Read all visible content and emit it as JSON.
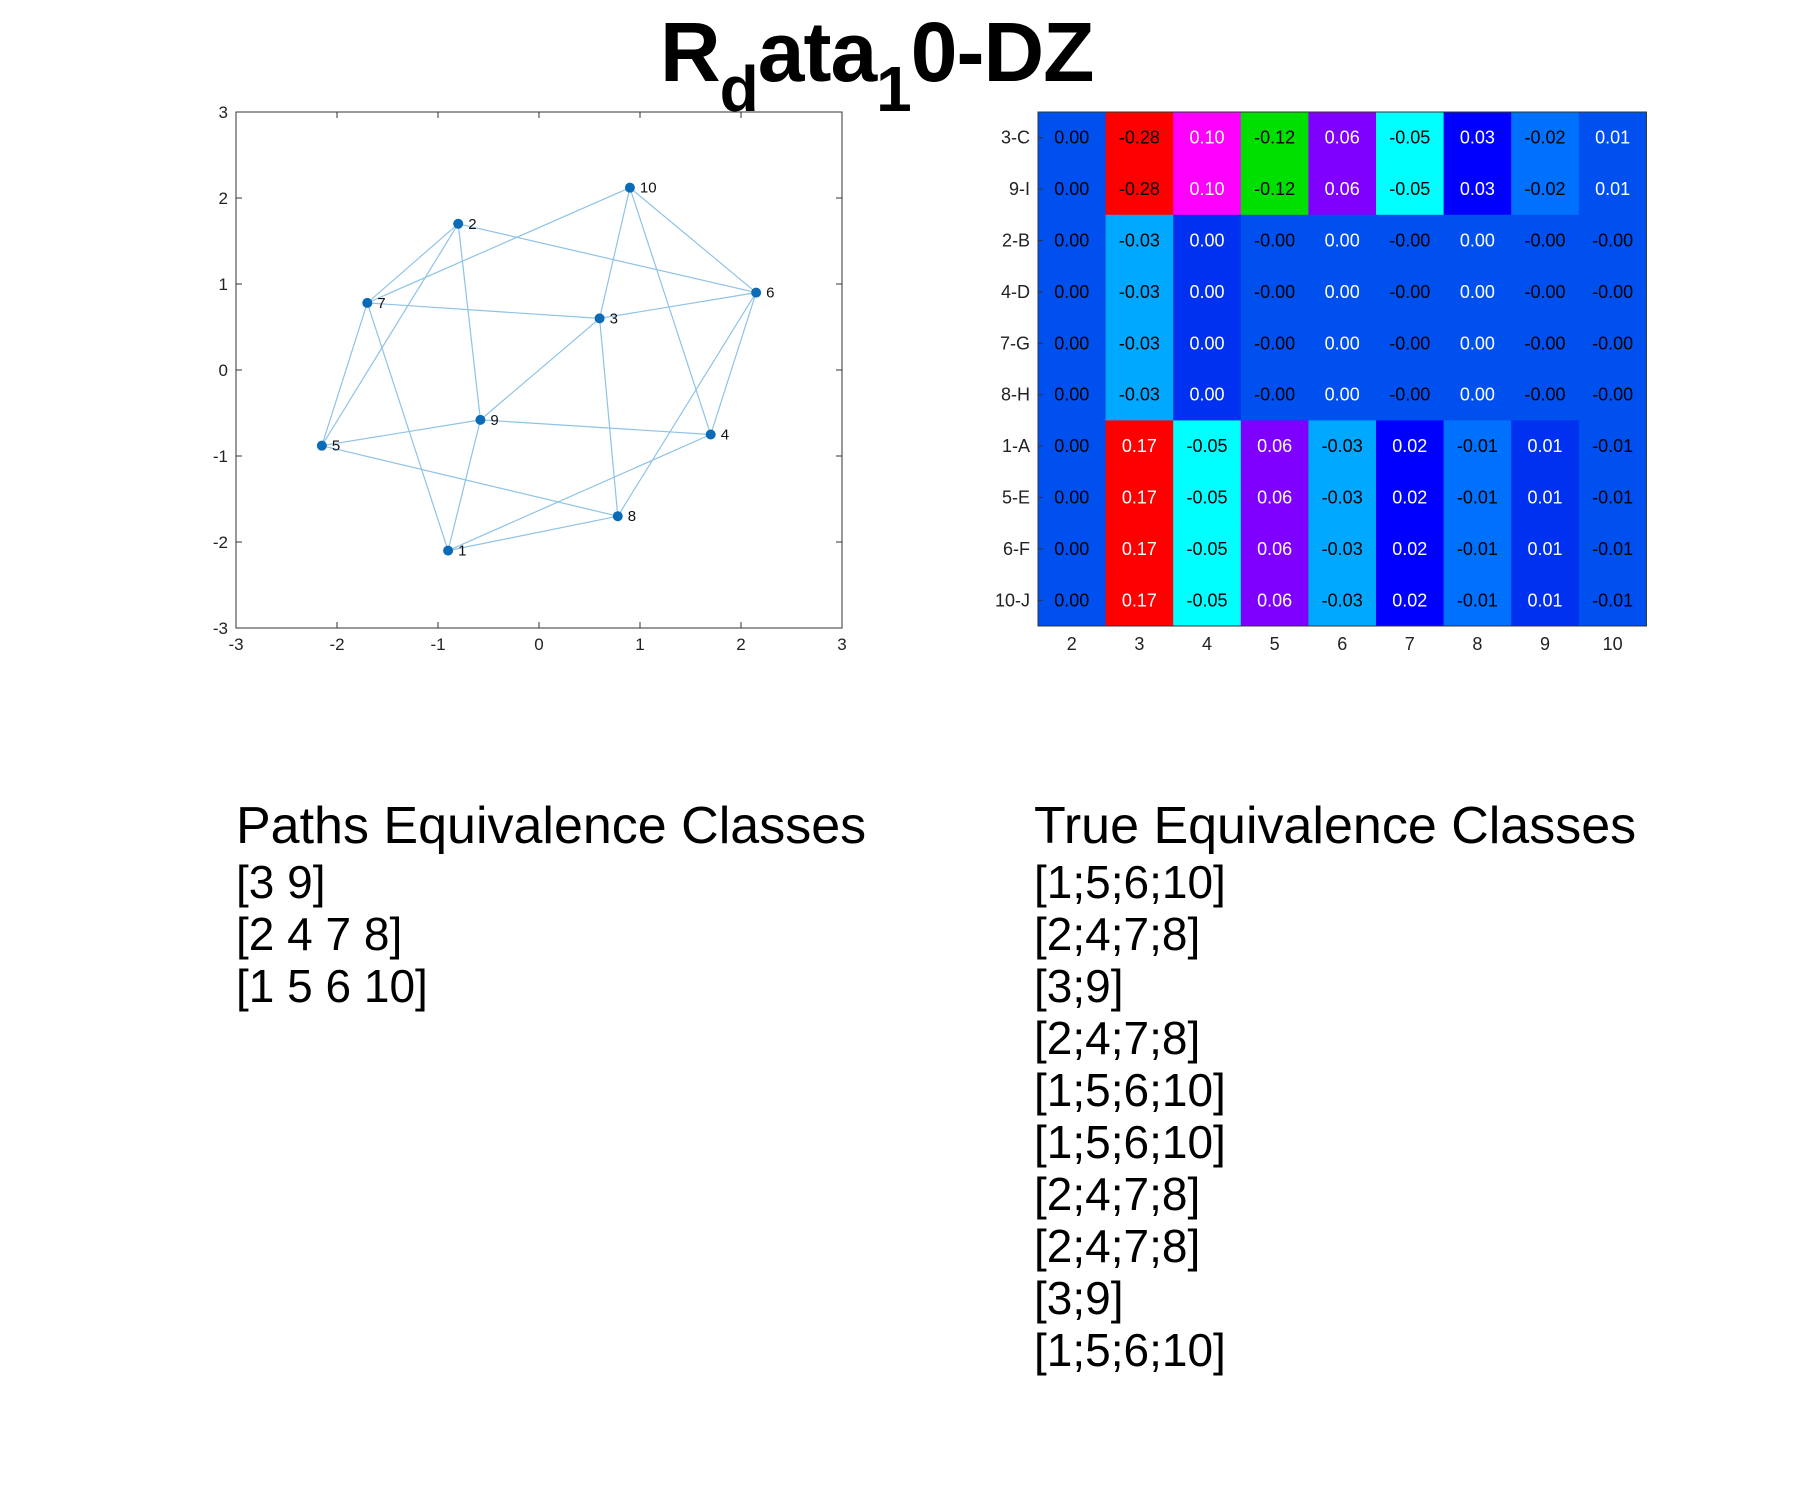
{
  "title": {
    "main": "R",
    "sub_d": "d",
    "mid": "ata",
    "sub_1": "1",
    "end": "0-DZ"
  },
  "chart_data": [
    {
      "type": "scatter",
      "xlim": [
        -3,
        3
      ],
      "ylim": [
        -3,
        3
      ],
      "xticks": [
        "-3",
        "-2",
        "-1",
        "0",
        "1",
        "2",
        "3"
      ],
      "yticks": [
        "-3",
        "-2",
        "-1",
        "0",
        "1",
        "2",
        "3"
      ],
      "grid": false,
      "point_color": "#0b6bb6",
      "edge_color": "#8fc3e6",
      "nodes": [
        {
          "label": "1",
          "x": -0.9,
          "y": -2.1
        },
        {
          "label": "2",
          "x": -0.8,
          "y": 1.7
        },
        {
          "label": "3",
          "x": 0.6,
          "y": 0.6
        },
        {
          "label": "4",
          "x": 1.7,
          "y": -0.75
        },
        {
          "label": "5",
          "x": -2.15,
          "y": -0.88
        },
        {
          "label": "6",
          "x": 2.15,
          "y": 0.9
        },
        {
          "label": "7",
          "x": -1.7,
          "y": 0.78
        },
        {
          "label": "8",
          "x": 0.78,
          "y": -1.7
        },
        {
          "label": "9",
          "x": -0.58,
          "y": -0.58
        },
        {
          "label": "10",
          "x": 0.9,
          "y": 2.12
        }
      ],
      "edges": [
        [
          "2",
          "7"
        ],
        [
          "2",
          "5"
        ],
        [
          "2",
          "9"
        ],
        [
          "2",
          "6"
        ],
        [
          "10",
          "7"
        ],
        [
          "10",
          "3"
        ],
        [
          "10",
          "4"
        ],
        [
          "10",
          "6"
        ],
        [
          "7",
          "3"
        ],
        [
          "7",
          "5"
        ],
        [
          "7",
          "1"
        ],
        [
          "3",
          "6"
        ],
        [
          "3",
          "9"
        ],
        [
          "3",
          "8"
        ],
        [
          "6",
          "4"
        ],
        [
          "6",
          "8"
        ],
        [
          "5",
          "9"
        ],
        [
          "5",
          "8"
        ],
        [
          "9",
          "4"
        ],
        [
          "9",
          "1"
        ],
        [
          "1",
          "4"
        ],
        [
          "1",
          "8"
        ]
      ]
    },
    {
      "type": "heatmap",
      "xlabels": [
        "2",
        "3",
        "4",
        "5",
        "6",
        "7",
        "8",
        "9",
        "10"
      ],
      "ylabels": [
        "3-C",
        "9-I",
        "2-B",
        "4-D",
        "7-G",
        "8-H",
        "1-A",
        "5-E",
        "6-F",
        "10-J"
      ],
      "values": [
        [
          "0.00",
          "-0.28",
          "0.10",
          "-0.12",
          "0.06",
          "-0.05",
          "0.03",
          "-0.02",
          "0.01"
        ],
        [
          "0.00",
          "-0.28",
          "0.10",
          "-0.12",
          "0.06",
          "-0.05",
          "0.03",
          "-0.02",
          "0.01"
        ],
        [
          "0.00",
          "-0.03",
          "0.00",
          "-0.00",
          "0.00",
          "-0.00",
          "0.00",
          "-0.00",
          "-0.00"
        ],
        [
          "0.00",
          "-0.03",
          "0.00",
          "-0.00",
          "0.00",
          "-0.00",
          "0.00",
          "-0.00",
          "-0.00"
        ],
        [
          "0.00",
          "-0.03",
          "0.00",
          "-0.00",
          "0.00",
          "-0.00",
          "0.00",
          "-0.00",
          "-0.00"
        ],
        [
          "0.00",
          "-0.03",
          "0.00",
          "-0.00",
          "0.00",
          "-0.00",
          "0.00",
          "-0.00",
          "-0.00"
        ],
        [
          "0.00",
          "0.17",
          "-0.05",
          "0.06",
          "-0.03",
          "0.02",
          "-0.01",
          "0.01",
          "-0.01"
        ],
        [
          "0.00",
          "0.17",
          "-0.05",
          "0.06",
          "-0.03",
          "0.02",
          "-0.01",
          "0.01",
          "-0.01"
        ],
        [
          "0.00",
          "0.17",
          "-0.05",
          "0.06",
          "-0.03",
          "0.02",
          "-0.01",
          "0.01",
          "-0.01"
        ],
        [
          "0.00",
          "0.17",
          "-0.05",
          "0.06",
          "-0.03",
          "0.02",
          "-0.01",
          "0.01",
          "-0.01"
        ]
      ],
      "cell_colors": [
        [
          "#0050f0",
          "#ff0000",
          "#ff00ff",
          "#00e000",
          "#8000ff",
          "#00ffff",
          "#0000ff",
          "#0070ff",
          "#0050f0"
        ],
        [
          "#0050f0",
          "#ff0000",
          "#ff00ff",
          "#00e000",
          "#8000ff",
          "#00ffff",
          "#0000ff",
          "#0070ff",
          "#0050f0"
        ],
        [
          "#0050f0",
          "#00a8ff",
          "#0030f0",
          "#0050f0",
          "#0050f0",
          "#0050f0",
          "#0050f0",
          "#0050f0",
          "#0050f0"
        ],
        [
          "#0050f0",
          "#00a8ff",
          "#0030f0",
          "#0050f0",
          "#0050f0",
          "#0050f0",
          "#0050f0",
          "#0050f0",
          "#0050f0"
        ],
        [
          "#0050f0",
          "#00a8ff",
          "#0030f0",
          "#0050f0",
          "#0050f0",
          "#0050f0",
          "#0050f0",
          "#0050f0",
          "#0050f0"
        ],
        [
          "#0050f0",
          "#00a8ff",
          "#0030f0",
          "#0050f0",
          "#0050f0",
          "#0050f0",
          "#0050f0",
          "#0050f0",
          "#0050f0"
        ],
        [
          "#0050f0",
          "#ff0000",
          "#00ffff",
          "#8000ff",
          "#00a8ff",
          "#0000ff",
          "#0070ff",
          "#0030f0",
          "#0050f0"
        ],
        [
          "#0050f0",
          "#ff0000",
          "#00ffff",
          "#8000ff",
          "#00a8ff",
          "#0000ff",
          "#0070ff",
          "#0030f0",
          "#0050f0"
        ],
        [
          "#0050f0",
          "#ff0000",
          "#00ffff",
          "#8000ff",
          "#00a8ff",
          "#0000ff",
          "#0070ff",
          "#0030f0",
          "#0050f0"
        ],
        [
          "#0050f0",
          "#ff0000",
          "#00ffff",
          "#8000ff",
          "#00a8ff",
          "#0000ff",
          "#0070ff",
          "#0030f0",
          "#0050f0"
        ]
      ],
      "text_colors": [
        [
          "#000000",
          "#000000",
          "#ffffff",
          "#000000",
          "#ffffff",
          "#000000",
          "#ffffff",
          "#000000",
          "#ffffff"
        ],
        [
          "#000000",
          "#000000",
          "#ffffff",
          "#000000",
          "#ffffff",
          "#000000",
          "#ffffff",
          "#000000",
          "#ffffff"
        ],
        [
          "#000000",
          "#000000",
          "#ffffff",
          "#000000",
          "#ffffff",
          "#000000",
          "#ffffff",
          "#000000",
          "#000000"
        ],
        [
          "#000000",
          "#000000",
          "#ffffff",
          "#000000",
          "#ffffff",
          "#000000",
          "#ffffff",
          "#000000",
          "#000000"
        ],
        [
          "#000000",
          "#000000",
          "#ffffff",
          "#000000",
          "#ffffff",
          "#000000",
          "#ffffff",
          "#000000",
          "#000000"
        ],
        [
          "#000000",
          "#000000",
          "#ffffff",
          "#000000",
          "#ffffff",
          "#000000",
          "#ffffff",
          "#000000",
          "#000000"
        ],
        [
          "#000000",
          "#ffffff",
          "#000000",
          "#ffffff",
          "#000000",
          "#ffffff",
          "#000000",
          "#ffffff",
          "#000000"
        ],
        [
          "#000000",
          "#ffffff",
          "#000000",
          "#ffffff",
          "#000000",
          "#ffffff",
          "#000000",
          "#ffffff",
          "#000000"
        ],
        [
          "#000000",
          "#ffffff",
          "#000000",
          "#ffffff",
          "#000000",
          "#ffffff",
          "#000000",
          "#ffffff",
          "#000000"
        ],
        [
          "#000000",
          "#ffffff",
          "#000000",
          "#ffffff",
          "#000000",
          "#ffffff",
          "#000000",
          "#ffffff",
          "#000000"
        ]
      ]
    }
  ],
  "paths_panel": {
    "heading": "Paths Equivalence Classes",
    "items": [
      "[3 9]",
      "[2 4 7 8]",
      "[1 5 6 10]"
    ]
  },
  "true_panel": {
    "heading": "True Equivalence Classes",
    "items": [
      "[1;5;6;10]",
      "[2;4;7;8]",
      "[3;9]",
      "[2;4;7;8]",
      "[1;5;6;10]",
      "[1;5;6;10]",
      "[2;4;7;8]",
      "[2;4;7;8]",
      "[3;9]",
      "[1;5;6;10]"
    ]
  }
}
